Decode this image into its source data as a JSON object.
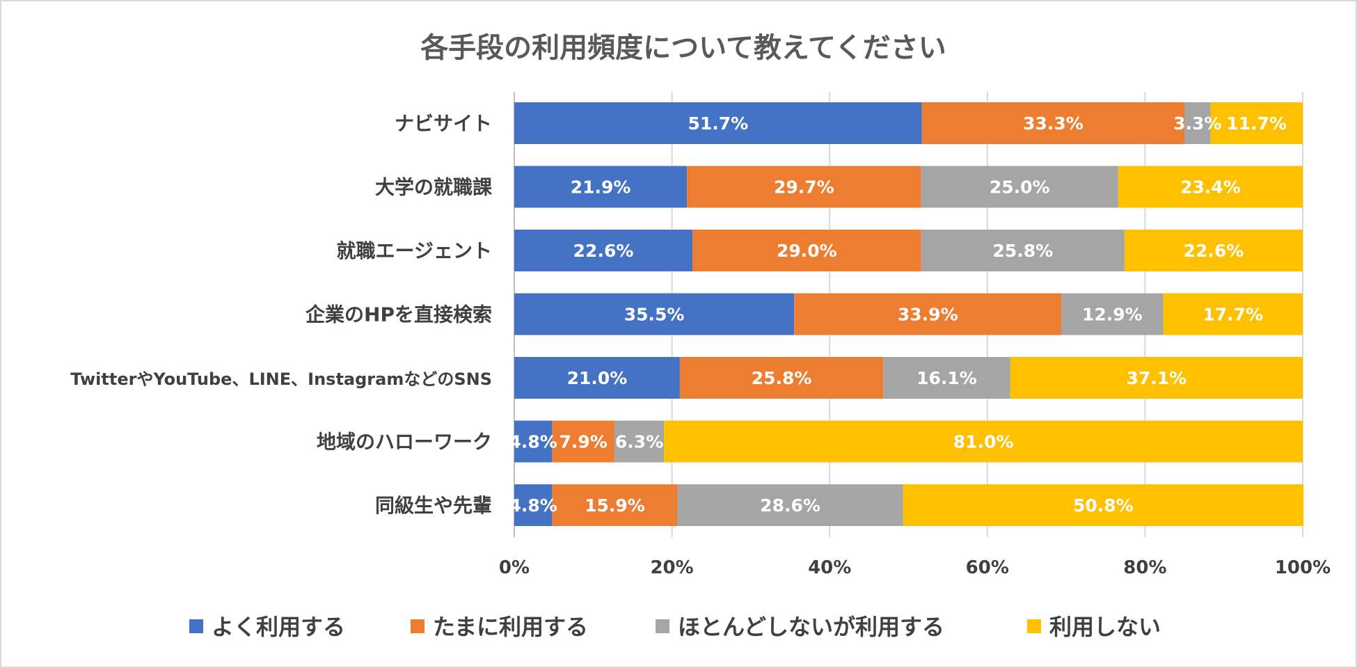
{
  "chart_data": {
    "type": "bar",
    "orientation": "horizontal",
    "stacked": "percent",
    "title": "各手段の利用頻度について教えてください",
    "categories": [
      "ナビサイト",
      "大学の就職課",
      "就職エージェント",
      "企業のHPを直接検索",
      "TwitterやYouTube、LINE、InstagramなどのSNS",
      "地域のハローワーク",
      "同級生や先輩"
    ],
    "series": [
      {
        "name": "よく利用する",
        "color": "#4472C4",
        "values": [
          51.7,
          21.9,
          22.6,
          35.5,
          21.0,
          4.8,
          4.8
        ]
      },
      {
        "name": "たまに利用する",
        "color": "#ED7D31",
        "values": [
          33.3,
          29.7,
          29.0,
          33.9,
          25.8,
          7.9,
          15.9
        ]
      },
      {
        "name": "ほとんどしないが利用する",
        "color": "#A5A5A5",
        "values": [
          3.3,
          25.0,
          25.8,
          12.9,
          16.1,
          6.3,
          28.6
        ]
      },
      {
        "name": "利用しない",
        "color": "#FFC000",
        "values": [
          11.7,
          23.4,
          22.6,
          17.7,
          37.1,
          81.0,
          50.8
        ]
      }
    ],
    "data_labels": [
      [
        "51.7%",
        "21.9%",
        "22.6%",
        "35.5%",
        "21.0%",
        "4.8%",
        "4.8%"
      ],
      [
        "33.3%",
        "29.7%",
        "29.0%",
        "33.9%",
        "25.8%",
        "7.9%",
        "15.9%"
      ],
      [
        "3.3%",
        "25.0%",
        "25.8%",
        "12.9%",
        "16.1%",
        "6.3%",
        "28.6%"
      ],
      [
        "11.7%",
        "23.4%",
        "22.6%",
        "17.7%",
        "37.1%",
        "81.0%",
        "50.8%"
      ]
    ],
    "xaxis": {
      "ticks": [
        0,
        20,
        40,
        60,
        80,
        100
      ],
      "tick_labels": [
        "0%",
        "20%",
        "40%",
        "60%",
        "80%",
        "100%"
      ],
      "range": [
        0,
        100
      ]
    },
    "grid": true,
    "legend_position": "bottom"
  }
}
